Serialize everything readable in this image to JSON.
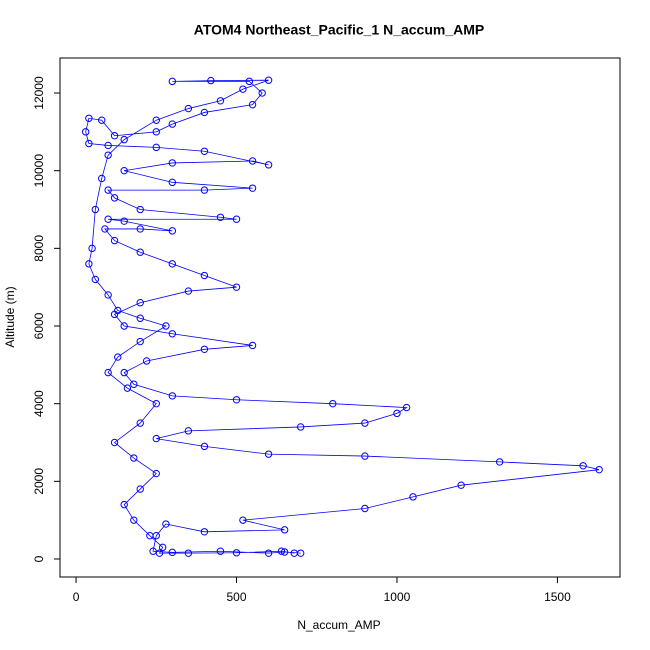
{
  "chart_data": {
    "type": "line",
    "title": "ATOM4 Northeast_Pacific_1 N_accum_AMP",
    "x_label": "N_accum_AMP",
    "y_label": "Altitude (m)",
    "color": "#0000ff",
    "markers": "open-circle",
    "xlim": [
      -50,
      1695
    ],
    "ylim": [
      -464,
      12902
    ],
    "xticks": [
      0,
      500,
      1000,
      1500
    ],
    "yticks": [
      0,
      2000,
      4000,
      6000,
      8000,
      10000,
      12000
    ],
    "x": [
      700,
      650,
      600,
      450,
      300,
      240,
      250,
      280,
      400,
      650,
      520,
      900,
      1050,
      1200,
      1630,
      1580,
      1320,
      900,
      600,
      400,
      250,
      350,
      700,
      900,
      1000,
      1030,
      800,
      500,
      300,
      180,
      150,
      220,
      400,
      550,
      300,
      150,
      120,
      200,
      350,
      500,
      400,
      300,
      200,
      120,
      90,
      200,
      300,
      150,
      100,
      500,
      450,
      200,
      120,
      100,
      400,
      550,
      300,
      150,
      300,
      550,
      600,
      400,
      250,
      100,
      40,
      30,
      40,
      80,
      120,
      250,
      300,
      400,
      550,
      580,
      540,
      300,
      420,
      600,
      520,
      450,
      350,
      250,
      150,
      100,
      80,
      60,
      50,
      40,
      60,
      100,
      130,
      200,
      280,
      200,
      130,
      100,
      160,
      250,
      200,
      120,
      180,
      250,
      200,
      150,
      180,
      230,
      270,
      260,
      350,
      500,
      640,
      680
    ],
    "values": [
      150,
      180,
      150,
      200,
      170,
      200,
      600,
      900,
      700,
      750,
      1000,
      1300,
      1600,
      1900,
      2300,
      2400,
      2500,
      2650,
      2700,
      2900,
      3100,
      3300,
      3400,
      3500,
      3750,
      3900,
      4000,
      4100,
      4200,
      4500,
      4800,
      5100,
      5400,
      5500,
      5800,
      6000,
      6300,
      6600,
      6900,
      7000,
      7300,
      7600,
      7900,
      8200,
      8500,
      8500,
      8450,
      8700,
      8750,
      8750,
      8800,
      9000,
      9300,
      9500,
      9500,
      9550,
      9700,
      10000,
      10200,
      10250,
      10150,
      10500,
      10600,
      10650,
      10700,
      11000,
      11350,
      11300,
      10900,
      11000,
      11200,
      11500,
      11700,
      12000,
      12300,
      12300,
      12320,
      12330,
      12100,
      11800,
      11600,
      11300,
      10800,
      10400,
      9800,
      9000,
      8000,
      7600,
      7200,
      6800,
      6400,
      6200,
      6000,
      5600,
      5200,
      4800,
      4400,
      4000,
      3500,
      3000,
      2600,
      2200,
      1800,
      1400,
      1000,
      600,
      300,
      150,
      150,
      160,
      200,
      150
    ]
  }
}
